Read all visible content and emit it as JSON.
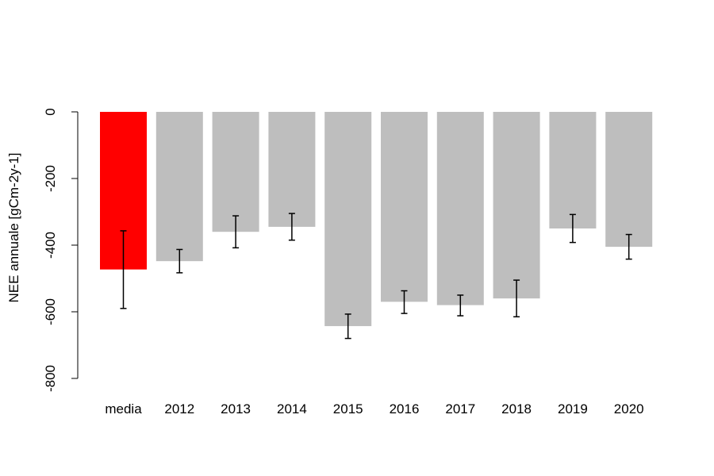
{
  "chart_data": {
    "type": "bar",
    "title": "",
    "xlabel": "",
    "ylabel": "NEE annuale [gCm-2y-1]",
    "ylim": [
      -800,
      0
    ],
    "yticks": [
      0,
      -200,
      -400,
      -600,
      -800
    ],
    "grid": false,
    "categories": [
      "media",
      "2012",
      "2013",
      "2014",
      "2015",
      "2016",
      "2017",
      "2018",
      "2019",
      "2020"
    ],
    "values": [
      -473,
      -448,
      -360,
      -345,
      -643,
      -570,
      -580,
      -560,
      -350,
      -405
    ],
    "error_low": [
      -590,
      -483,
      -408,
      -385,
      -680,
      -605,
      -612,
      -615,
      -392,
      -442
    ],
    "error_high": [
      -357,
      -413,
      -312,
      -305,
      -607,
      -537,
      -550,
      -505,
      -308,
      -368
    ],
    "colors": [
      "#ff0000",
      "#bebebe",
      "#bebebe",
      "#bebebe",
      "#bebebe",
      "#bebebe",
      "#bebebe",
      "#bebebe",
      "#bebebe",
      "#bebebe"
    ]
  }
}
